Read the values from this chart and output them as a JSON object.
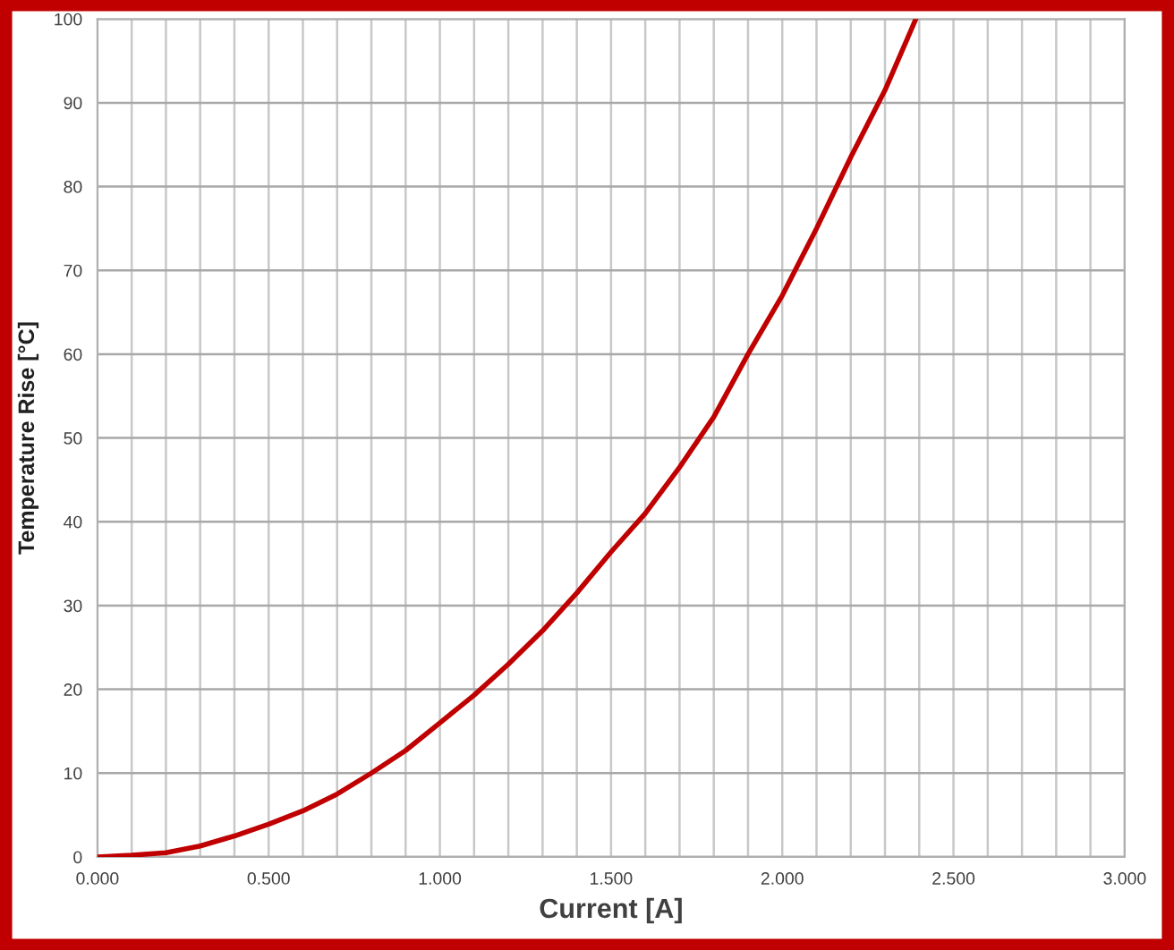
{
  "chart_data": {
    "type": "line",
    "xlabel": "Current [A]",
    "ylabel": "Temperature Rise [°C]",
    "x": [
      0,
      0.1,
      0.2,
      0.3,
      0.4,
      0.5,
      0.6,
      0.7,
      0.8,
      0.9,
      1.0,
      1.1,
      1.2,
      1.3,
      1.4,
      1.5,
      1.6,
      1.7,
      1.8,
      1.9,
      2.0,
      2.1,
      2.2,
      2.3,
      2.39
    ],
    "series": [
      {
        "color": "#c00000",
        "values": [
          0,
          0.2,
          0.5,
          1.3,
          2.5,
          3.9,
          5.5,
          7.5,
          10,
          12.7,
          16,
          19.3,
          23,
          27,
          31.5,
          36.4,
          41,
          46.5,
          52.5,
          60,
          67,
          75,
          83.5,
          91.5,
          100
        ]
      }
    ],
    "xlim": [
      0,
      3
    ],
    "ylim": [
      0,
      100
    ],
    "xticks": [
      {
        "value": 0,
        "label": "0.000"
      },
      {
        "value": 0.1,
        "label": null
      },
      {
        "value": 0.2,
        "label": null
      },
      {
        "value": 0.3,
        "label": null
      },
      {
        "value": 0.4,
        "label": null
      },
      {
        "value": 0.5,
        "label": "0.500"
      },
      {
        "value": 0.6,
        "label": null
      },
      {
        "value": 0.7,
        "label": null
      },
      {
        "value": 0.8,
        "label": null
      },
      {
        "value": 0.9,
        "label": null
      },
      {
        "value": 1.0,
        "label": "1.000"
      },
      {
        "value": 1.1,
        "label": null
      },
      {
        "value": 1.2,
        "label": null
      },
      {
        "value": 1.3,
        "label": null
      },
      {
        "value": 1.4,
        "label": null
      },
      {
        "value": 1.5,
        "label": "1.500"
      },
      {
        "value": 1.6,
        "label": null
      },
      {
        "value": 1.7,
        "label": null
      },
      {
        "value": 1.8,
        "label": null
      },
      {
        "value": 1.9,
        "label": null
      },
      {
        "value": 2.0,
        "label": "2.000"
      },
      {
        "value": 2.1,
        "label": null
      },
      {
        "value": 2.2,
        "label": null
      },
      {
        "value": 2.3,
        "label": null
      },
      {
        "value": 2.4,
        "label": null
      },
      {
        "value": 2.5,
        "label": "2.500"
      },
      {
        "value": 2.6,
        "label": null
      },
      {
        "value": 2.7,
        "label": null
      },
      {
        "value": 2.8,
        "label": null
      },
      {
        "value": 2.9,
        "label": null
      },
      {
        "value": 3.0,
        "label": "3.000"
      }
    ],
    "yticks": [
      0,
      10,
      20,
      30,
      40,
      50,
      60,
      70,
      80,
      90,
      100
    ],
    "grid": true,
    "marker": "none",
    "line_style": "solid"
  }
}
